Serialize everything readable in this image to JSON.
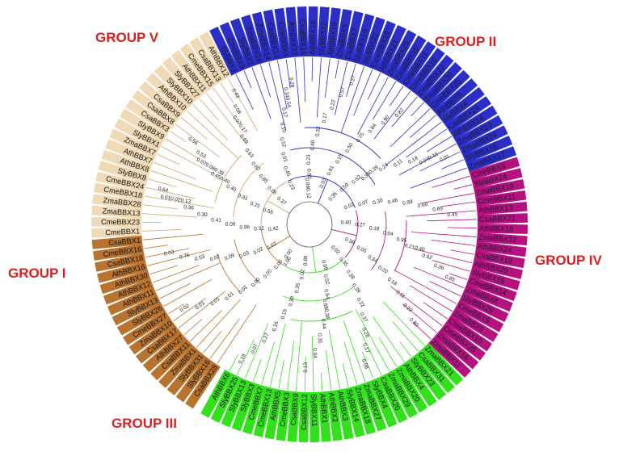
{
  "groups": {
    "group_v": {
      "label": "GROUP V",
      "color": "#B8732E"
    },
    "group_ii": {
      "label": "GROUP II",
      "color": "#F0D9B5"
    },
    "group_iv": {
      "label": "GROUP IV",
      "color": "#2B2FC8"
    },
    "group_iii": {
      "label": "GROUP III",
      "color": "#B5127F"
    },
    "group_i": {
      "label": "GROUP I",
      "color": "#33E01C"
    }
  },
  "label_color": "#D91F1F",
  "leaves": [
    {
      "name": "CsaBBX28",
      "group": "group_v"
    },
    {
      "name": "SlyBBX16",
      "group": "group_v"
    },
    {
      "name": "SlyBBX31",
      "group": "group_v"
    },
    {
      "name": "ZmaBBX1",
      "group": "group_v"
    },
    {
      "name": "CsaBBX11",
      "group": "group_v"
    },
    {
      "name": "AthBBX27",
      "group": "group_v"
    },
    {
      "name": "CsaBBX17",
      "group": "group_v"
    },
    {
      "name": "ZmaBBX10",
      "group": "group_v"
    },
    {
      "name": "CmeBBX27",
      "group": "group_v"
    },
    {
      "name": "SlyBBX26",
      "group": "group_v"
    },
    {
      "name": "SlyBBX13",
      "group": "group_v"
    },
    {
      "name": "AthBBX11",
      "group": "group_v"
    },
    {
      "name": "AthBBX12",
      "group": "group_v"
    },
    {
      "name": "AthBBX30",
      "group": "group_v"
    },
    {
      "name": "AthBBX16",
      "group": "group_v"
    },
    {
      "name": "CsaBBX18",
      "group": "group_v"
    },
    {
      "name": "CmeBBX16",
      "group": "group_v"
    },
    {
      "name": "CsaBBX1",
      "group": "group_v"
    },
    {
      "name": "CmeBBX1",
      "group": "group_ii"
    },
    {
      "name": "CmeBBX23",
      "group": "group_ii"
    },
    {
      "name": "ZmaBBX13",
      "group": "group_ii"
    },
    {
      "name": "ZmaBBX28",
      "group": "group_ii"
    },
    {
      "name": "CmeBBX18",
      "group": "group_ii"
    },
    {
      "name": "CmeBBX24",
      "group": "group_ii"
    },
    {
      "name": "SlyBBX8",
      "group": "group_ii"
    },
    {
      "name": "AthBBX8",
      "group": "group_ii"
    },
    {
      "name": "AthBBX7",
      "group": "group_ii"
    },
    {
      "name": "ZmaBBX7",
      "group": "group_ii"
    },
    {
      "name": "SlyBBX1",
      "group": "group_ii"
    },
    {
      "name": "SlyBBX9",
      "group": "group_ii"
    },
    {
      "name": "CsaBBX3",
      "group": "group_ii"
    },
    {
      "name": "CsaBBX8",
      "group": "group_ii"
    },
    {
      "name": "CsaBBX9",
      "group": "group_ii"
    },
    {
      "name": "AthBBX10",
      "group": "group_ii"
    },
    {
      "name": "SlyBBX10",
      "group": "group_ii"
    },
    {
      "name": "SlyBBX27",
      "group": "group_ii"
    },
    {
      "name": "AthBBX11",
      "group": "group_ii"
    },
    {
      "name": "CmeBBX15",
      "group": "group_ii"
    },
    {
      "name": "CsaBBX13",
      "group": "group_ii"
    },
    {
      "name": "AthBBX12",
      "group": "group_ii"
    },
    {
      "name": "SlyBBX3",
      "group": "group_iv"
    },
    {
      "name": "ZmaBBX9",
      "group": "group_iv"
    },
    {
      "name": "SlyBBX2",
      "group": "group_iv"
    },
    {
      "name": "ZmaBBX26",
      "group": "group_iv"
    },
    {
      "name": "ZmaBBX14",
      "group": "group_iv"
    },
    {
      "name": "CsaBBX14",
      "group": "group_iv"
    },
    {
      "name": "CmeBBX4",
      "group": "group_iv"
    },
    {
      "name": "AthBBX22",
      "group": "group_iv"
    },
    {
      "name": "CsaBBX13",
      "group": "group_iv"
    },
    {
      "name": "AthBBX18",
      "group": "group_iv"
    },
    {
      "name": "SlyBBX12",
      "group": "group_iv"
    },
    {
      "name": "AthBBX19",
      "group": "group_iv"
    },
    {
      "name": "ZmaBBX6",
      "group": "group_iv"
    },
    {
      "name": "CsaBBX7",
      "group": "group_iv"
    },
    {
      "name": "SlyBBX19",
      "group": "group_iv"
    },
    {
      "name": "SlyBBX22",
      "group": "group_iv"
    },
    {
      "name": "CmeBBX19",
      "group": "group_iv"
    },
    {
      "name": "AthBBX21",
      "group": "group_iv"
    },
    {
      "name": "ZmaBBX25",
      "group": "group_iv"
    },
    {
      "name": "ZmaBBX15",
      "group": "group_iv"
    },
    {
      "name": "CmeBBX11",
      "group": "group_iv"
    },
    {
      "name": "CmeBBX10",
      "group": "group_iv"
    },
    {
      "name": "ZmaBBX22",
      "group": "group_iv"
    },
    {
      "name": "ZmaBBX30",
      "group": "group_iv"
    },
    {
      "name": "CmeBBX25",
      "group": "group_iv"
    },
    {
      "name": "AthBBX9",
      "group": "group_iv"
    },
    {
      "name": "SlyBBX4",
      "group": "group_iv"
    },
    {
      "name": "CsaBBX24",
      "group": "group_iv"
    },
    {
      "name": "AthBBX14",
      "group": "group_iv"
    },
    {
      "name": "ZmaBBX23",
      "group": "group_iv"
    },
    {
      "name": "ZmaBBX24",
      "group": "group_iv"
    },
    {
      "name": "SlyBBX18",
      "group": "group_iv"
    },
    {
      "name": "ZmaBBX17",
      "group": "group_iv"
    },
    {
      "name": "CmeBBX6",
      "group": "group_iii"
    },
    {
      "name": "SlyBBX24",
      "group": "group_iii"
    },
    {
      "name": "ZmaBBX19",
      "group": "group_iii"
    },
    {
      "name": "CmeBBX11",
      "group": "group_iii"
    },
    {
      "name": "AthBBX13",
      "group": "group_iii"
    },
    {
      "name": "CsaBBX21",
      "group": "group_iii"
    },
    {
      "name": "AthBBX18",
      "group": "group_iii"
    },
    {
      "name": "ZmaBBX12",
      "group": "group_iii"
    },
    {
      "name": "AthBBX24",
      "group": "group_iii"
    },
    {
      "name": "CsaBBX19",
      "group": "group_iii"
    },
    {
      "name": "AthBBX20",
      "group": "group_iii"
    },
    {
      "name": "SlyBBX15",
      "group": "group_iii"
    },
    {
      "name": "CmeBBX14",
      "group": "group_iii"
    },
    {
      "name": "ZmaBBX8",
      "group": "group_iii"
    },
    {
      "name": "SlyBBX29",
      "group": "group_iii"
    },
    {
      "name": "CmeBBX9",
      "group": "group_iii"
    },
    {
      "name": "ZmaBBX5",
      "group": "group_iii"
    },
    {
      "name": "CmeBBX10",
      "group": "group_iii"
    },
    {
      "name": "CmeBBX20",
      "group": "group_iii"
    },
    {
      "name": "ZmaBBX16",
      "group": "group_iii"
    },
    {
      "name": "ZmaBBX11",
      "group": "group_iii"
    },
    {
      "name": "ZmaBBX21",
      "group": "group_i"
    },
    {
      "name": "CsaBBX31",
      "group": "group_i"
    },
    {
      "name": "SlyBBX23",
      "group": "group_i"
    },
    {
      "name": "AthBBX4",
      "group": "group_i"
    },
    {
      "name": "ZmaBBX20",
      "group": "group_i"
    },
    {
      "name": "ZmaBBX29",
      "group": "group_i"
    },
    {
      "name": "CsaBBX20",
      "group": "group_i"
    },
    {
      "name": "SlyBBX4",
      "group": "group_i"
    },
    {
      "name": "ZmaBBX27",
      "group": "group_i"
    },
    {
      "name": "ZmaBBX18",
      "group": "group_i"
    },
    {
      "name": "SlyBBX14",
      "group": "group_i"
    },
    {
      "name": "AthBBX3",
      "group": "group_i"
    },
    {
      "name": "AthBBX2",
      "group": "group_i"
    },
    {
      "name": "AthBBX1",
      "group": "group_i"
    },
    {
      "name": "SlyBBX11",
      "group": "group_i"
    },
    {
      "name": "CsaBBX12",
      "group": "group_i"
    },
    {
      "name": "CsaBBX9",
      "group": "group_i"
    },
    {
      "name": "CmeBBX3",
      "group": "group_i"
    },
    {
      "name": "AthBBX5",
      "group": "group_i"
    },
    {
      "name": "CmeBBX13",
      "group": "group_i"
    },
    {
      "name": "CmeBBX7",
      "group": "group_i"
    },
    {
      "name": "SlyBBX3",
      "group": "group_i"
    },
    {
      "name": "SlyBBX13",
      "group": "group_i"
    },
    {
      "name": "SlyBBX25",
      "group": "group_i"
    },
    {
      "name": "AthBBX6",
      "group": "group_i"
    }
  ],
  "branch_values": [
    "0.00",
    "0.00",
    "0.00",
    "0.00",
    "0.01",
    "0.01",
    "0.01",
    "0.01",
    "0.02",
    "0.02",
    "0.02",
    "0.03",
    "0.09",
    "0.02",
    "0.53",
    "0.76",
    "0.03",
    "0.42",
    "0.32",
    "0.96",
    "0.00",
    "0.41",
    "0.30",
    "0.36",
    "0.010.020.13",
    "0.64",
    "0.56",
    "0.21",
    "0.81",
    "0.40",
    "0.450.40",
    "0.070.080.38",
    "0.53",
    "0.56",
    "0.37",
    "0.26",
    "0.85",
    "0.62",
    "0.63",
    "0.69",
    "0.070.17",
    "0.08",
    "0.43",
    "0.23",
    "0.45",
    "0.01",
    "0.52",
    "0.10",
    "0.17",
    "0.340.54",
    "0.28",
    "0.080.12",
    "0.87",
    "0.23",
    "0.40",
    "0.32",
    "0.17",
    "0.22",
    "0.57",
    "0.27",
    "0.03",
    "0.81",
    "0.15",
    "0.50",
    "0.75",
    "0.84",
    "0.90",
    "0.82",
    "0.35",
    "0.59",
    "0.52",
    "0.360.39",
    "0.24",
    "0.11",
    "0.18",
    "0.040.10",
    "0.01",
    "0.02",
    "0.07",
    "0.30",
    "0.48",
    "0.99",
    "0.60",
    "0.89",
    "0.45",
    "0.40",
    "0.27",
    "0.18",
    "0.04",
    "0.95",
    "0.210.40",
    "0.92",
    "0.36",
    "0.65",
    "0.38",
    "0.05",
    "0.34",
    "0.20",
    "0.18",
    "0.11",
    "0.22",
    "0.80",
    "0.02",
    "0.35",
    "0.38",
    "0.39",
    "0.22",
    "0.37",
    "0.28",
    "0.17",
    "0.08",
    "0.09",
    "0.52",
    "0.54",
    "0.680.38",
    "0.44",
    "0.31",
    "0.04",
    "0.13",
    "0.86",
    "0.02",
    "0.35",
    "0.38",
    "0.15",
    "0.16",
    "0.27",
    "0.07",
    "0.19",
    "0.06"
  ]
}
